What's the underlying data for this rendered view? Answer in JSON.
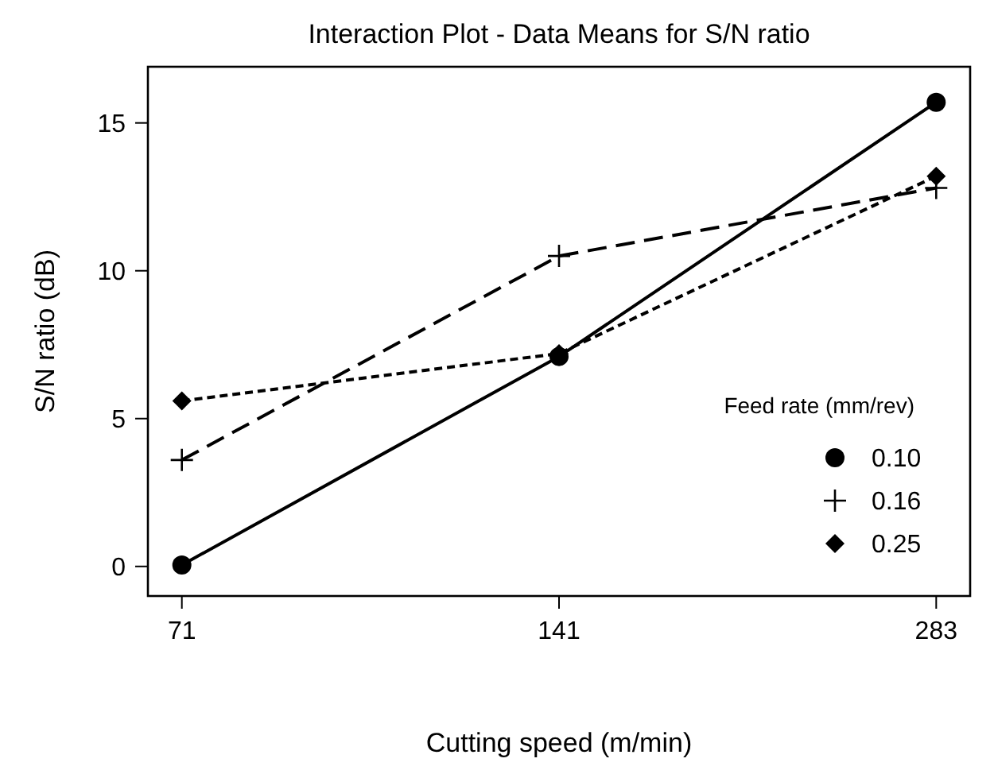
{
  "chart_data": {
    "type": "line",
    "title": "Interaction Plot - Data Means for S/N ratio",
    "xlabel": "Cutting speed (m/min)",
    "ylabel": "S/N ratio (dB)",
    "legend_title": "Feed rate (mm/rev)",
    "legend": "bottom right",
    "grid": false,
    "categories": [
      "71",
      "141",
      "283"
    ],
    "ylim": [
      -1,
      16.9
    ],
    "yticks": [
      0,
      5,
      10,
      15
    ],
    "series": [
      {
        "name": "0.10",
        "color": "#000000",
        "values": [
          0.05,
          7.1,
          15.7
        ],
        "marker": "circle",
        "line_style": "solid"
      },
      {
        "name": "0.16",
        "color": "#000000",
        "values": [
          3.6,
          10.5,
          12.8
        ],
        "marker": "cross",
        "line_style": "dashed"
      },
      {
        "name": "0.25",
        "color": "#000000",
        "values": [
          5.6,
          7.2,
          13.2
        ],
        "marker": "diamond",
        "line_style": "dotted"
      }
    ]
  }
}
